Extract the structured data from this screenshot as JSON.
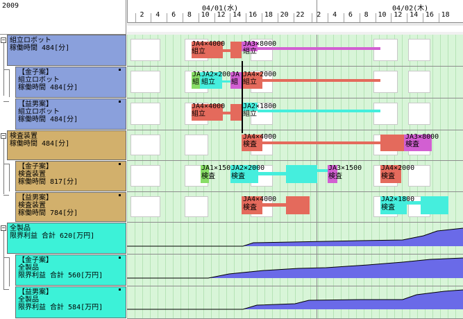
{
  "header": {
    "year": "2009",
    "days": [
      "04/01(水)",
      "04/02(木)"
    ],
    "hour_ticks": [
      "2",
      "4",
      "6",
      "8",
      "10",
      "12",
      "14",
      "16",
      "18",
      "20",
      "22",
      "2",
      "4",
      "6",
      "8",
      "10",
      "12",
      "14",
      "16",
      "18"
    ]
  },
  "rows": [
    {
      "lines": [
        "組立ロボット",
        "稼働時間 484[分]"
      ]
    },
    {
      "lines": [
        "【金子案】",
        "組立ロボット",
        "稼働時間 484[分]"
      ]
    },
    {
      "lines": [
        "【益男案】",
        "組立ロボット",
        "稼働時間 484[分]"
      ]
    },
    {
      "lines": [
        "検査装置",
        "稼働時間 484[分]"
      ]
    },
    {
      "lines": [
        "【金子案】",
        "検査装置",
        "稼働時間 817[分]"
      ]
    },
    {
      "lines": [
        "【益男案】",
        "検査装置",
        "稼働時間 784[分]"
      ]
    },
    {
      "lines": [
        "全製品",
        "限界利益 合計 620[万円]"
      ]
    },
    {
      "lines": [
        "【金子案】",
        "全製品",
        "限界利益 合計 560[万円]"
      ]
    },
    {
      "lines": [
        "【益男案】",
        "全製品",
        "限界利益 合計 584[万円]"
      ]
    }
  ],
  "tree_toggles": {
    "minus": "−",
    "box": "口"
  },
  "tasks": {
    "r0": [
      {
        "top": "JA4×4000",
        "bottom": "組立"
      },
      {
        "top": "JA3×8000",
        "bottom": "組立"
      }
    ],
    "r1": [
      {
        "top": "JA",
        "bottom": "組"
      },
      {
        "top": "JA2×200",
        "bottom": "組立"
      },
      {
        "top": "JA",
        "bottom": "組"
      },
      {
        "top": "JA4×2000",
        "bottom": "組立"
      }
    ],
    "r2": [
      {
        "top": "JA4×4000",
        "bottom": "組立"
      },
      {
        "top": "JA2×1800",
        "bottom": "組立"
      }
    ],
    "r3": [
      {
        "top": "JA4×4000",
        "bottom": "検査"
      },
      {
        "top": "JA3×8000",
        "bottom": "検査"
      }
    ],
    "r4": [
      {
        "top": "JA1×150",
        "bottom": "検査"
      },
      {
        "top": "JA2×2000",
        "bottom": "検査"
      },
      {
        "top": "JA3×1500",
        "bottom": "検査"
      },
      {
        "top": "JA4×2000",
        "bottom": "検査"
      }
    ],
    "r5": [
      {
        "top": "JA4×4000",
        "bottom": "検査"
      },
      {
        "top": "JA2×1800",
        "bottom": "検査"
      }
    ]
  },
  "colors": {
    "grid_bg": "#d8f5d8",
    "label_blue": "#8aa0dc",
    "label_tan": "#d2b06c",
    "label_cyan": "#3cf2d8",
    "bar_red": "#e46a5c",
    "bar_magenta": "#d25fd2",
    "bar_cyan": "#45eedd",
    "bar_green": "#88dd66",
    "profit_fill": "#6a6ae8"
  }
}
